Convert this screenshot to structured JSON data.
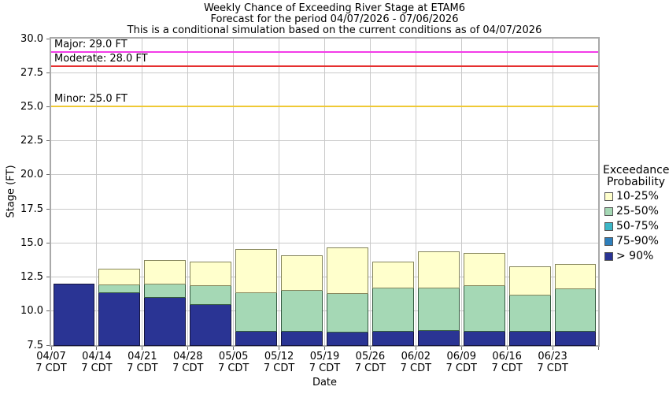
{
  "header": {
    "title1": "Weekly Chance of Exceeding River Stage at ETAM6",
    "title2": "Forecast for the period 04/07/2026 - 07/06/2026",
    "title3": "This is a conditional simulation based on the current conditions as of 04/07/2026"
  },
  "chart_data": {
    "type": "bar",
    "stacked": true,
    "title": "Weekly Chance of Exceeding River Stage at ETAM6",
    "xlabel": "Date",
    "ylabel": "Stage (FT)",
    "ylim": [
      7.5,
      30.0
    ],
    "yticks": [
      7.5,
      10.0,
      12.5,
      15.0,
      17.5,
      20.0,
      22.5,
      25.0,
      27.5,
      30.0
    ],
    "grid": true,
    "baseline": 7.5,
    "categories": [
      "04/07",
      "04/14",
      "04/21",
      "04/28",
      "05/05",
      "05/12",
      "05/19",
      "05/26",
      "06/02",
      "06/09",
      "06/16",
      "06/23"
    ],
    "category_time_label": "7 CDT",
    "series": [
      {
        "name": "> 90%",
        "color": "#2A3494",
        "border": "#14143C",
        "tops": [
          12.0,
          11.4,
          11.0,
          10.5,
          8.55,
          8.55,
          8.5,
          8.55,
          8.6,
          8.55,
          8.55,
          8.55
        ]
      },
      {
        "name": "25-50%",
        "color": "#A5D8B5",
        "border": "#33593F",
        "tops": [
          12.0,
          11.95,
          12.0,
          11.9,
          11.35,
          11.55,
          11.3,
          11.7,
          11.75,
          11.9,
          11.2,
          11.65
        ]
      },
      {
        "name": "10-25%",
        "color": "#FFFFCC",
        "border": "#85855C",
        "tops": [
          12.0,
          13.1,
          13.75,
          13.65,
          14.55,
          14.1,
          14.65,
          13.65,
          14.4,
          14.25,
          13.3,
          13.45
        ]
      }
    ],
    "thresholds": [
      {
        "name": "major",
        "label": "Major: 29.0 FT",
        "stage": 29.0,
        "color": "#F33CE8"
      },
      {
        "name": "moderate",
        "label": "Moderate: 28.0 FT",
        "stage": 28.0,
        "color": "#E62F2F"
      },
      {
        "name": "minor",
        "label": "Minor: 25.0 FT",
        "stage": 25.0,
        "color": "#EFC935"
      }
    ],
    "legend_position": "right"
  },
  "legend": {
    "title_line1": "Exceedance",
    "title_line2": "Probability",
    "items": [
      {
        "label": "10-25%",
        "color": "#FFFFCC"
      },
      {
        "label": "25-50%",
        "color": "#A5D8B5"
      },
      {
        "label": "50-75%",
        "color": "#3DB7C7"
      },
      {
        "label": "75-90%",
        "color": "#2E7FBC"
      },
      {
        "label": "> 90%",
        "color": "#2A3494"
      }
    ]
  }
}
